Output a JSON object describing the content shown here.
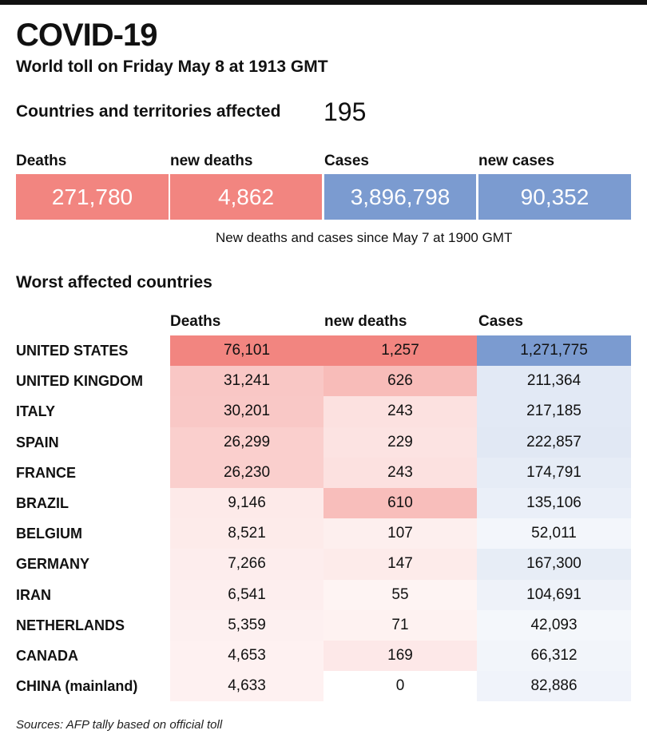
{
  "title": "COVID-19",
  "subtitle": "World toll on Friday May 8 at 1913 GMT",
  "countries_label": "Countries and territories affected",
  "countries_value": "195",
  "colors": {
    "red": "#f28580",
    "blue": "#7b9bd0"
  },
  "summary": [
    {
      "label": "Deaths",
      "value": "271,780",
      "color": "red"
    },
    {
      "label": "new deaths",
      "value": "4,862",
      "color": "red"
    },
    {
      "label": "Cases",
      "value": "3,896,798",
      "color": "blue"
    },
    {
      "label": "new cases",
      "value": "90,352",
      "color": "blue"
    }
  ],
  "note": "New deaths and cases since May 7 at 1900 GMT",
  "worst_title": "Worst affected countries",
  "source": "Sources: AFP tally  based on official toll",
  "chart_data": {
    "type": "table",
    "title": "Worst affected countries",
    "columns": [
      "Deaths",
      "new deaths",
      "Cases"
    ],
    "rows": [
      {
        "country": "UNITED STATES",
        "deaths": 76101,
        "new_deaths": 1257,
        "cases": 1271775,
        "d": "76,101",
        "nd": "1,257",
        "c": "1,271,775"
      },
      {
        "country": "UNITED KINGDOM",
        "deaths": 31241,
        "new_deaths": 626,
        "cases": 211364,
        "d": "31,241",
        "nd": "626",
        "c": "211,364"
      },
      {
        "country": "ITALY",
        "deaths": 30201,
        "new_deaths": 243,
        "cases": 217185,
        "d": "30,201",
        "nd": "243",
        "c": "217,185"
      },
      {
        "country": "SPAIN",
        "deaths": 26299,
        "new_deaths": 229,
        "cases": 222857,
        "d": "26,299",
        "nd": "229",
        "c": "222,857"
      },
      {
        "country": "FRANCE",
        "deaths": 26230,
        "new_deaths": 243,
        "cases": 174791,
        "d": "26,230",
        "nd": "243",
        "c": "174,791"
      },
      {
        "country": "BRAZIL",
        "deaths": 9146,
        "new_deaths": 610,
        "cases": 135106,
        "d": "9,146",
        "nd": "610",
        "c": "135,106"
      },
      {
        "country": "BELGIUM",
        "deaths": 8521,
        "new_deaths": 107,
        "cases": 52011,
        "d": "8,521",
        "nd": "107",
        "c": "52,011"
      },
      {
        "country": "GERMANY",
        "deaths": 7266,
        "new_deaths": 147,
        "cases": 167300,
        "d": "7,266",
        "nd": "147",
        "c": "167,300"
      },
      {
        "country": "IRAN",
        "deaths": 6541,
        "new_deaths": 55,
        "cases": 104691,
        "d": "6,541",
        "nd": "55",
        "c": "104,691"
      },
      {
        "country": "NETHERLANDS",
        "deaths": 5359,
        "new_deaths": 71,
        "cases": 42093,
        "d": "5,359",
        "nd": "71",
        "c": "42,093"
      },
      {
        "country": "CANADA",
        "deaths": 4653,
        "new_deaths": 169,
        "cases": 66312,
        "d": "4,653",
        "nd": "169",
        "c": "66,312"
      },
      {
        "country": "CHINA (mainland)",
        "deaths": 4633,
        "new_deaths": 0,
        "cases": 82886,
        "d": "4,633",
        "nd": "0",
        "c": "82,886"
      }
    ]
  }
}
